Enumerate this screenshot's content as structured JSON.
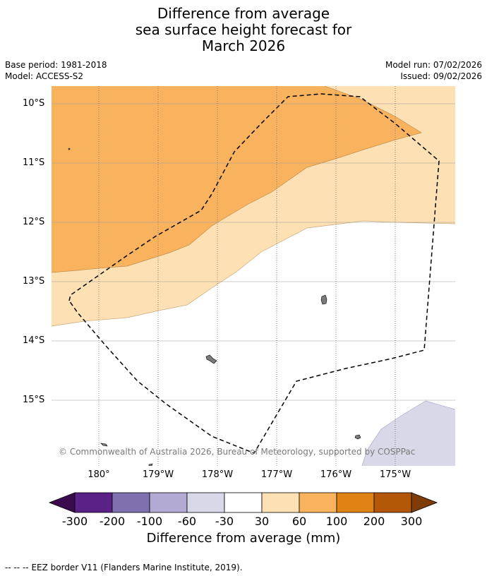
{
  "title": {
    "line1": "Difference from average",
    "line2": "sea surface height forecast for",
    "line3": "March 2026"
  },
  "meta": {
    "base_period": "Base period: 1981-2018",
    "model": "Model: ACCESS-S2",
    "model_run": "Model run: 07/02/2026",
    "issued": "Issued: 09/02/2026"
  },
  "latitude_labels": [
    "10°S",
    "11°S",
    "12°S",
    "13°S",
    "14°S",
    "15°S"
  ],
  "longitude_labels": [
    "180°",
    "179°W",
    "178°W",
    "177°W",
    "176°W",
    "175°W"
  ],
  "copyright": "© Commonwealth of Australia 2026, Bureau of Meteorology, supported by COSPPac",
  "colorbar": {
    "title": "Difference from average (mm)",
    "tick_labels": [
      "-300",
      "-200",
      "-100",
      "-60",
      "-30",
      "30",
      "60",
      "100",
      "200",
      "300"
    ],
    "colors": {
      "below_-300": "#3b0a4f",
      "-300_-200": "#5a2286",
      "-200_-100": "#8070ad",
      "-100_-60": "#b2aad2",
      "-60_-30": "#d8d8e9",
      "-30_30": "#ffffff",
      "30_60": "#fde0b3",
      "60_100": "#f9b35e",
      "100_200": "#e08214",
      "200_300": "#b35806",
      "above_300": "#7f3b08"
    }
  },
  "legend": {
    "symbol": "--  --  --",
    "text": "EEZ border V11 (Flanders Marine Institute, 2019)."
  },
  "chart_data": {
    "type": "map",
    "title": "Difference from average sea surface height forecast for March 2026",
    "variable": "sea surface height anomaly",
    "units": "mm",
    "forecast_month": "March 2026",
    "model": "ACCESS-S2",
    "base_period": "1981-2018",
    "lat_range": [
      "10°S",
      "16°S"
    ],
    "lon_range": [
      "179.2°E",
      "174.0°W"
    ],
    "categories": [
      "-300",
      "-200",
      "-100",
      "-60",
      "-30",
      "30",
      "60",
      "100",
      "200",
      "300"
    ],
    "regions": [
      {
        "name": "north-west",
        "category": "60 to 100 mm"
      },
      {
        "name": "central band",
        "category": "30 to 60 mm"
      },
      {
        "name": "south and east",
        "category": "-30 to 30 mm"
      },
      {
        "name": "south-east corner",
        "category": "-60 to -30 mm"
      }
    ]
  }
}
